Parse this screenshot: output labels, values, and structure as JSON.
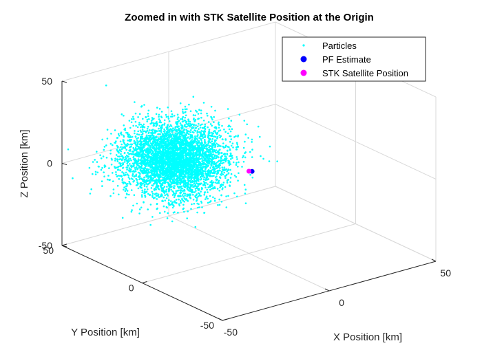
{
  "chart_data": {
    "type": "scatter",
    "title": "Zoomed in with STK Satellite Position at the Origin",
    "xlabel": "X Position [km]",
    "ylabel": "Y Position [km]",
    "zlabel": "Z Position [km]",
    "xlim": [
      -50,
      50
    ],
    "ylim": [
      -50,
      50
    ],
    "zlim": [
      -50,
      50
    ],
    "ticks": {
      "x": [
        "-50",
        "0",
        "50"
      ],
      "y": [
        "50",
        "0",
        "-50"
      ],
      "z": [
        "50",
        "0",
        "-50"
      ]
    },
    "grid": true,
    "legend_position": "top-right",
    "colors": {
      "particles": "#00ffff",
      "pf_estimate": "#0000ff",
      "stk": "#ff00ff",
      "grid": "#d9d9d9",
      "axis": "#262626"
    },
    "series": [
      {
        "name": "Particles",
        "marker": "dot",
        "distribution": "gaussian cloud (thousands of points)",
        "center": {
          "x": -20,
          "y": 20,
          "z": 5
        },
        "spread_std": {
          "x": 10,
          "y": 10,
          "z": 10
        }
      },
      {
        "name": "PF Estimate",
        "marker": "filled circle",
        "points": [
          {
            "x": 6,
            "y": 6,
            "z": -5
          }
        ]
      },
      {
        "name": "STK Satellite Position",
        "marker": "filled circle",
        "points": [
          {
            "x": 0,
            "y": 0,
            "z": 0
          }
        ]
      }
    ]
  }
}
